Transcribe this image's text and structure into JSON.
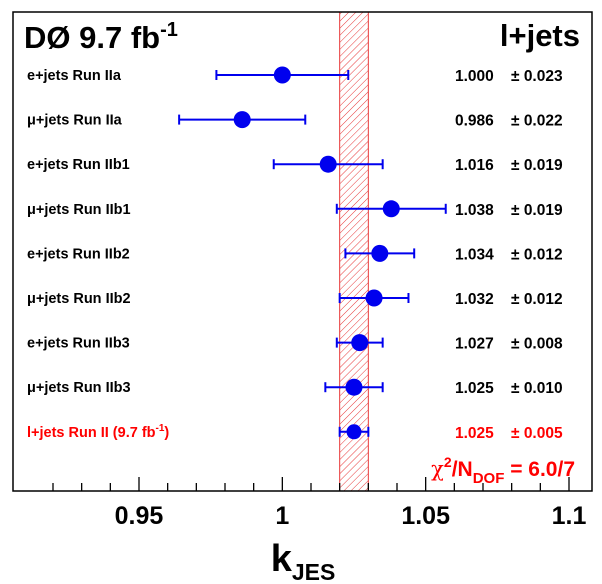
{
  "chart_data": {
    "type": "scatter",
    "title": "DØ 9.7 fb",
    "title_sup": "-1",
    "channel": "l+jets",
    "xlabel": "k",
    "xlabel_sub": "JES",
    "xlim": [
      0.918,
      1.122
    ],
    "xticks": [
      {
        "value": 0.95,
        "label": "0.95"
      },
      {
        "value": 1.0,
        "label": "1"
      },
      {
        "value": 1.05,
        "label": "1.05"
      },
      {
        "value": 1.1,
        "label": "1.1"
      }
    ],
    "band": {
      "low": 1.02,
      "high": 1.03,
      "color": "#e8393a"
    },
    "points": [
      {
        "label": "e+jets Run IIa",
        "value": 1.0,
        "error": 0.023,
        "value_text": "1.000",
        "error_text": "± 0.023",
        "combined": false
      },
      {
        "label": "μ+jets Run IIa",
        "value": 0.986,
        "error": 0.022,
        "value_text": "0.986",
        "error_text": "± 0.022",
        "combined": false
      },
      {
        "label": "e+jets Run IIb1",
        "value": 1.016,
        "error": 0.019,
        "value_text": "1.016",
        "error_text": "± 0.019",
        "combined": false
      },
      {
        "label": "μ+jets Run IIb1",
        "value": 1.038,
        "error": 0.019,
        "value_text": "1.038",
        "error_text": "± 0.019",
        "combined": false
      },
      {
        "label": "e+jets Run IIb2",
        "value": 1.034,
        "error": 0.012,
        "value_text": "1.034",
        "error_text": "± 0.012",
        "combined": false
      },
      {
        "label": "μ+jets Run IIb2",
        "value": 1.032,
        "error": 0.012,
        "value_text": "1.032",
        "error_text": "± 0.012",
        "combined": false
      },
      {
        "label": "e+jets Run IIb3",
        "value": 1.027,
        "error": 0.008,
        "value_text": "1.027",
        "error_text": "± 0.008",
        "combined": false
      },
      {
        "label": "μ+jets Run IIb3",
        "value": 1.025,
        "error": 0.01,
        "value_text": "1.025",
        "error_text": "± 0.010",
        "combined": false
      },
      {
        "label": "l+jets Run II (9.7 fb",
        "label_sup": "-1",
        "label_close": ")",
        "value": 1.025,
        "error": 0.005,
        "value_text": "1.025",
        "error_text": "± 0.005",
        "combined": true
      }
    ],
    "chi2": {
      "prefix": "χ",
      "sup": "2",
      "mid": "/N",
      "sub": "DOF",
      "suffix": " = 6.0/7"
    },
    "colors": {
      "point": "#0000ee",
      "combined_text": "#ff0000",
      "text": "#000000",
      "axis": "#000000"
    }
  }
}
